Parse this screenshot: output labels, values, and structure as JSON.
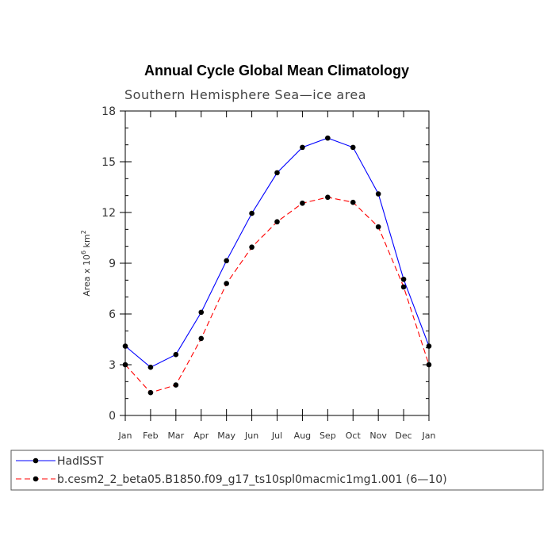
{
  "chart_data": {
    "type": "line",
    "title": "Annual Cycle Global Mean Climatology",
    "subtitle": "Southern Hemisphere Sea—ice area",
    "ylabel": "Area x 10",
    "ylabel_exp": "6",
    "ylabel_unit": "km",
    "ylabel_unit_exp": "2",
    "xlabel": "",
    "categories": [
      "Jan",
      "Feb",
      "Mar",
      "Apr",
      "May",
      "Jun",
      "Jul",
      "Aug",
      "Sep",
      "Oct",
      "Nov",
      "Dec",
      "Jan"
    ],
    "ylim": [
      0,
      18
    ],
    "yticks": [
      0,
      3,
      6,
      9,
      12,
      15,
      18
    ],
    "yticks_minor_step": 1,
    "series": [
      {
        "name": "HadISST",
        "color": "#0000ff",
        "dashed": false,
        "values": [
          4.1,
          2.85,
          3.6,
          6.1,
          9.15,
          11.95,
          14.35,
          15.85,
          16.4,
          15.85,
          13.1,
          8.05,
          4.1
        ]
      },
      {
        "name": "b.cesm2_2_beta05.B1850.f09_g17_ts10spl0macmic1mg1.001 (6—10)",
        "color": "#ff0000",
        "dashed": true,
        "values": [
          3.0,
          1.35,
          1.8,
          4.55,
          7.8,
          9.95,
          11.45,
          12.55,
          12.9,
          12.6,
          11.15,
          7.6,
          3.0
        ]
      }
    ],
    "grid": false,
    "legend_position": "bottom"
  }
}
